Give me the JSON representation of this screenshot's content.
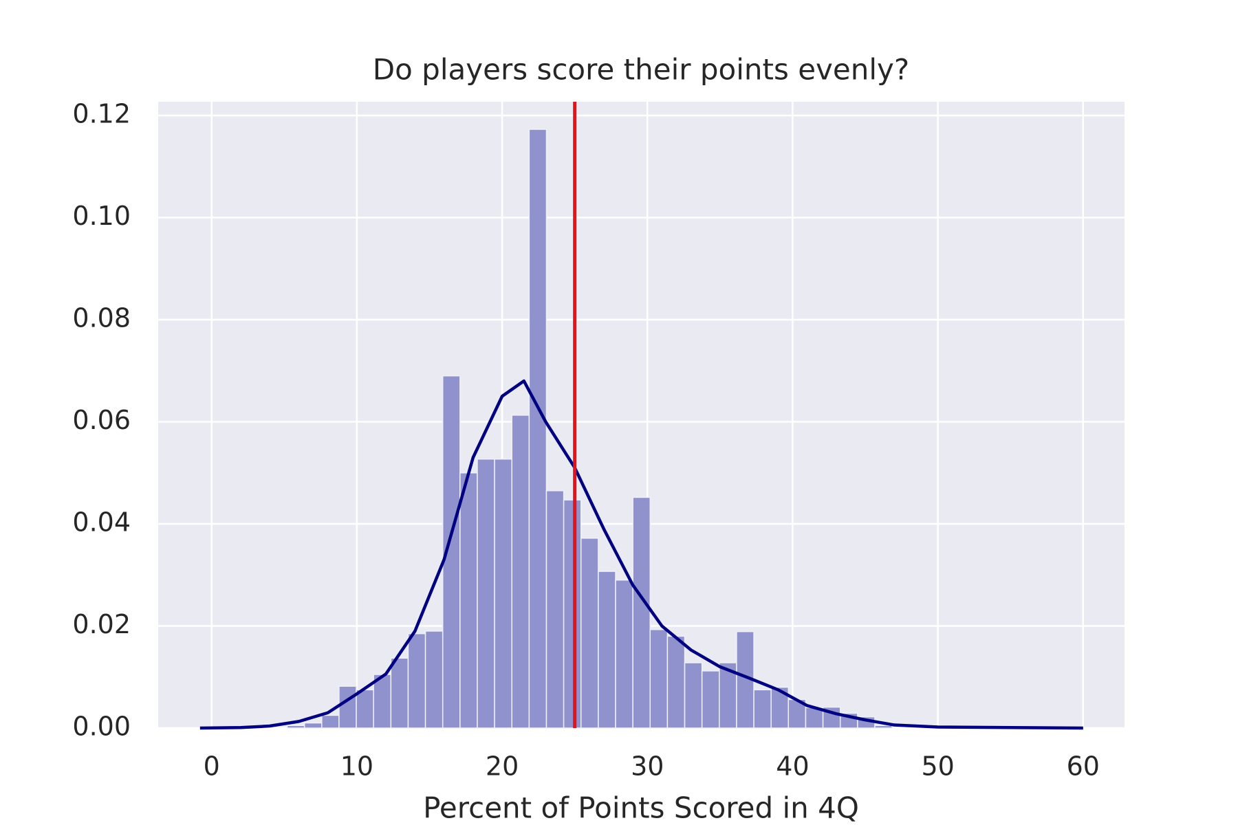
{
  "chart_data": {
    "type": "histogram",
    "title": "Do players score their points evenly?",
    "xlabel": "Percent of Points Scored in 4Q",
    "bins": [
      5.2,
      6.39,
      7.58,
      8.77,
      9.96,
      11.15,
      12.34,
      13.53,
      14.72,
      15.91,
      17.1,
      18.29,
      19.48,
      20.67,
      21.86,
      23.05,
      24.24,
      25.43,
      26.62,
      27.81,
      29.0,
      30.19,
      31.38,
      32.57,
      33.76,
      34.95,
      36.14,
      37.33,
      38.52,
      39.71,
      40.9,
      42.09,
      43.28,
      44.47,
      45.66,
      46.85
    ],
    "counts": [
      0.0005,
      0.001,
      0.0025,
      0.0082,
      0.0075,
      0.0105,
      0.0137,
      0.0185,
      0.019,
      0.069,
      0.05,
      0.0527,
      0.0527,
      0.0613,
      0.1173,
      0.0465,
      0.0447,
      0.0372,
      0.0307,
      0.029,
      0.0452,
      0.0193,
      0.018,
      0.0128,
      0.0112,
      0.0128,
      0.0189,
      0.0075,
      0.008,
      0.0056,
      0.004,
      0.0041,
      0.0029,
      0.0022,
      0.0005
    ],
    "color": "#9092cd",
    "kde": {
      "color": "#000080",
      "x": [
        -0.8,
        2,
        4,
        6,
        8,
        10,
        12,
        14,
        16,
        18,
        20,
        21.5,
        23,
        25,
        27,
        29,
        31,
        33,
        35,
        37,
        39,
        41,
        43,
        45,
        47,
        50,
        55,
        60
      ],
      "y": [
        0,
        0.0001,
        0.0004,
        0.0013,
        0.003,
        0.0067,
        0.0106,
        0.019,
        0.033,
        0.053,
        0.065,
        0.068,
        0.06,
        0.051,
        0.039,
        0.028,
        0.02,
        0.0153,
        0.012,
        0.0098,
        0.0075,
        0.0044,
        0.0028,
        0.0016,
        0.0006,
        0.0002,
        0.0001,
        0
      ]
    },
    "vline": {
      "x": 25,
      "color": "#e3121b"
    },
    "xlim": [
      -3.68,
      62.85
    ],
    "ylim": [
      0,
      0.1227
    ],
    "xticks": [
      0,
      10,
      20,
      30,
      40,
      50,
      60
    ],
    "yticks": [
      {
        "value": 0,
        "label": "0.00"
      },
      0.02,
      0.04,
      0.06,
      0.08,
      {
        "value": 0.1,
        "label": "0.10"
      },
      0.12
    ],
    "grid": true,
    "background": "#eaeaf2"
  }
}
